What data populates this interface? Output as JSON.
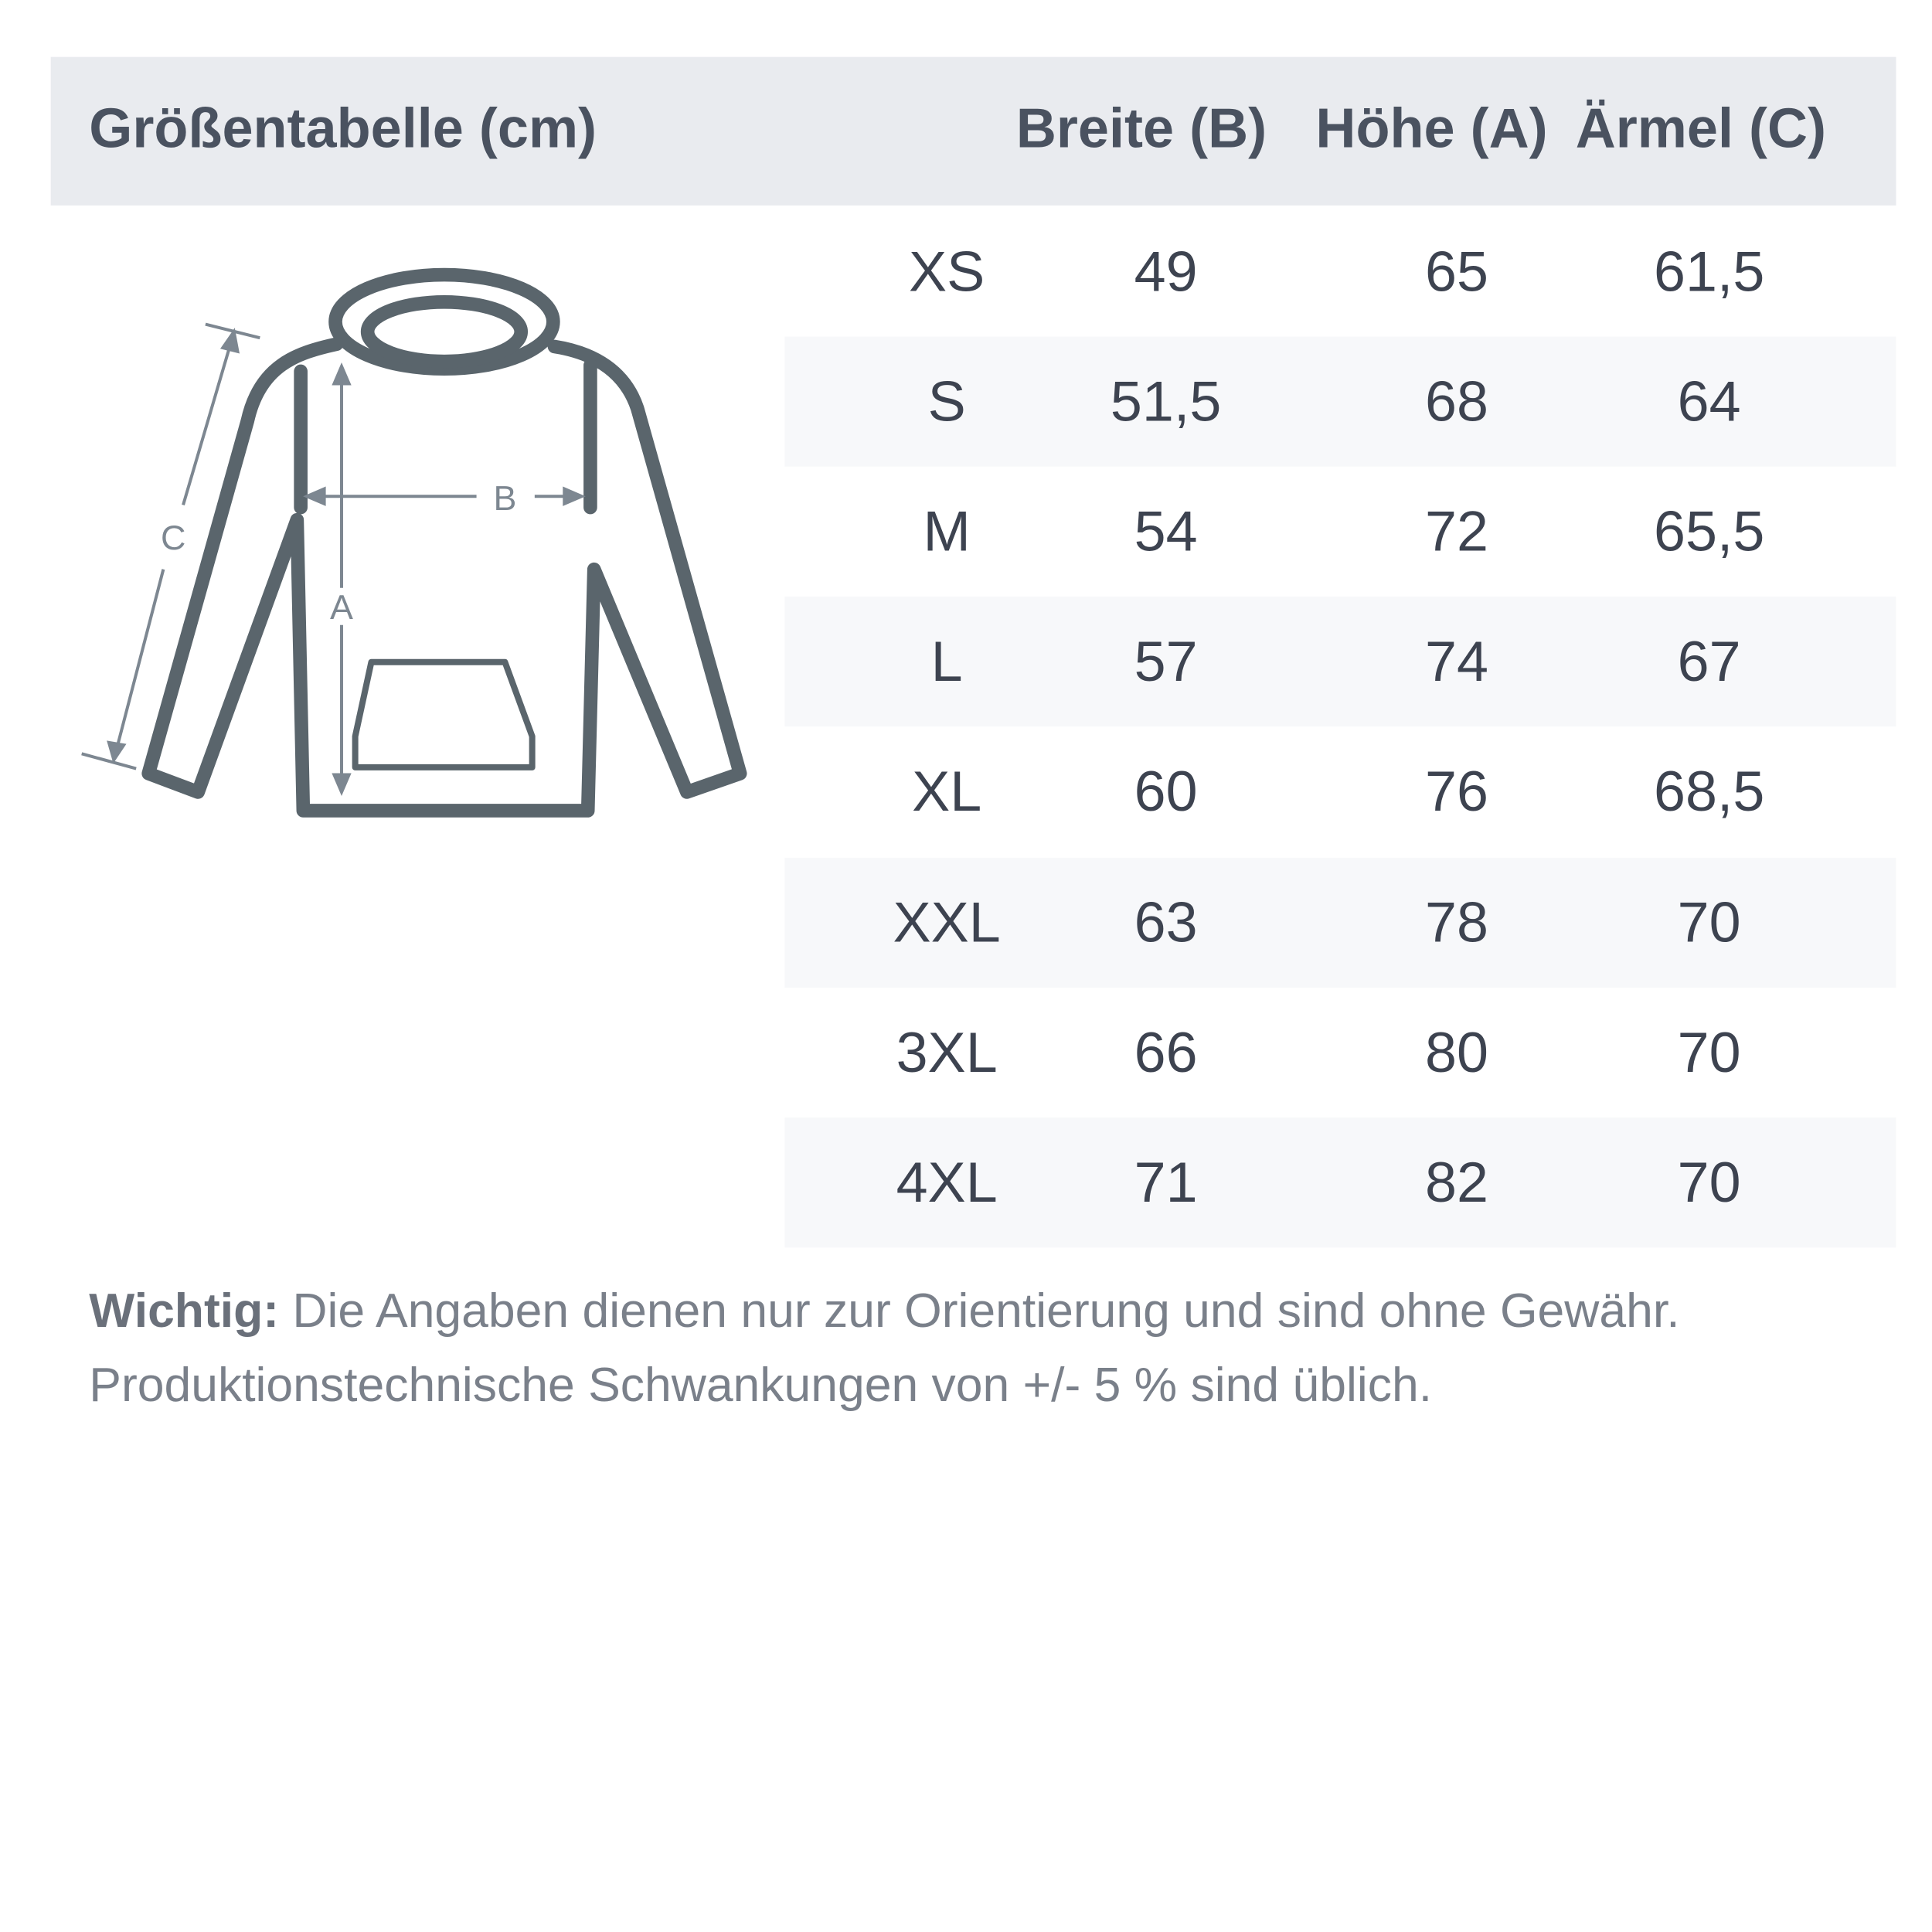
{
  "title": "Größentabelle (cm)",
  "columns": [
    "Breite (B)",
    "Höhe (A)",
    "Ärmel (C)"
  ],
  "rows": [
    {
      "size": "XS",
      "breite": "49",
      "hoehe": "65",
      "aermel": "61,5"
    },
    {
      "size": "S",
      "breite": "51,5",
      "hoehe": "68",
      "aermel": "64"
    },
    {
      "size": "M",
      "breite": "54",
      "hoehe": "72",
      "aermel": "65,5"
    },
    {
      "size": "L",
      "breite": "57",
      "hoehe": "74",
      "aermel": "67"
    },
    {
      "size": "XL",
      "breite": "60",
      "hoehe": "76",
      "aermel": "68,5"
    },
    {
      "size": "XXL",
      "breite": "63",
      "hoehe": "78",
      "aermel": "70"
    },
    {
      "size": "3XL",
      "breite": "66",
      "hoehe": "80",
      "aermel": "70"
    },
    {
      "size": "4XL",
      "breite": "71",
      "hoehe": "82",
      "aermel": "70"
    }
  ],
  "diagram": {
    "label_a": "A",
    "label_b": "B",
    "label_c": "C",
    "icon": "hoodie-measurement-icon"
  },
  "note": {
    "bold": "Wichtig:",
    "line1": " Die Angaben dienen nur zur Orientierung und sind ohne Gewähr.",
    "line2": "Produktionstechnische Schwankungen von +/- 5 % sind üblich."
  },
  "colors": {
    "header_bg": "#e9ebef",
    "stripe": "#f7f8fa",
    "text": "#3d4350",
    "outline": "#5a656c"
  }
}
